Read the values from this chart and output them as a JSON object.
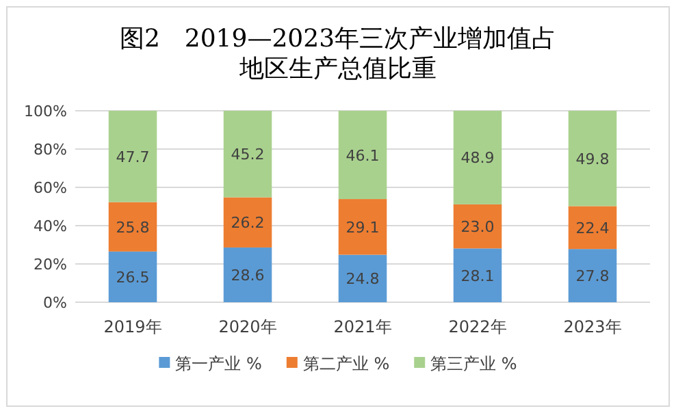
{
  "chart_data": {
    "type": "bar",
    "title": "图2　2019—2023年三次产业增加值占地区生产总值比重",
    "categories": [
      "2019年",
      "2020年",
      "2021年",
      "2022年",
      "2023年"
    ],
    "series": [
      {
        "name": "第一产业 %",
        "color": "#5b9bd5",
        "values": [
          26.5,
          28.6,
          24.8,
          28.1,
          27.8
        ],
        "value_labels": [
          "26.5",
          "28.6",
          "24.8",
          "28.1",
          "27.8"
        ]
      },
      {
        "name": "第二产业 %",
        "color": "#ed7d31",
        "values": [
          25.8,
          26.2,
          29.1,
          23.0,
          22.4
        ],
        "value_labels": [
          "25.8",
          "26.2",
          "29.1",
          "23.0",
          "22.4"
        ]
      },
      {
        "name": "第三产业 %",
        "color": "#a9d18e",
        "values": [
          47.7,
          45.2,
          46.1,
          48.9,
          49.8
        ],
        "value_labels": [
          "47.7",
          "45.2",
          "46.1",
          "48.9",
          "49.8"
        ]
      }
    ],
    "stacked": true,
    "grid": "y",
    "legend": "bottom",
    "ylim": [
      0,
      100
    ],
    "yticks": [
      {
        "value": 0,
        "label": "0%"
      },
      {
        "value": 20,
        "label": "20%"
      },
      {
        "value": 40,
        "label": "40%"
      },
      {
        "value": 60,
        "label": "60%"
      },
      {
        "value": 80,
        "label": "80%"
      },
      {
        "value": 100,
        "label": "100%"
      }
    ]
  }
}
